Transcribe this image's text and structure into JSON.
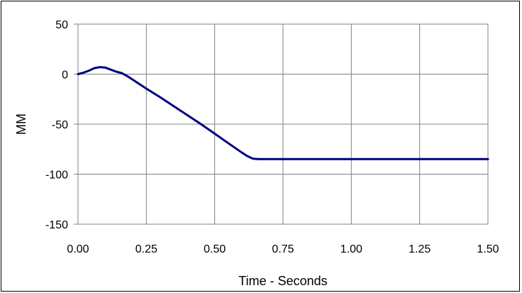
{
  "chart_data": {
    "type": "line",
    "title": "",
    "xlabel": "Time - Seconds",
    "ylabel": "MM",
    "xlim": [
      0.0,
      1.5
    ],
    "ylim": [
      -150,
      50
    ],
    "x_ticks": [
      "0.00",
      "0.25",
      "0.50",
      "0.75",
      "1.00",
      "1.25",
      "1.50"
    ],
    "y_ticks": [
      "50",
      "0",
      "-50",
      "-100",
      "-150"
    ],
    "x_tick_values": [
      0.0,
      0.25,
      0.5,
      0.75,
      1.0,
      1.25,
      1.5
    ],
    "y_tick_values": [
      50,
      0,
      -50,
      -100,
      -150
    ],
    "grid": true,
    "legend": "none",
    "line_color": "#000080",
    "series": [
      {
        "x": [
          0.0,
          0.02,
          0.04,
          0.06,
          0.08,
          0.1,
          0.12,
          0.14,
          0.16,
          0.18,
          0.2,
          0.25,
          0.3,
          0.35,
          0.4,
          0.45,
          0.5,
          0.55,
          0.6,
          0.62,
          0.64,
          0.66,
          0.7,
          0.8,
          0.9,
          1.0,
          1.1,
          1.2,
          1.3,
          1.4,
          1.5
        ],
        "y": [
          0,
          1.5,
          3.5,
          6,
          7,
          6.5,
          4.5,
          2.5,
          1,
          -2,
          -5.5,
          -14.5,
          -23,
          -32,
          -41,
          -50,
          -59.5,
          -69,
          -78.5,
          -82,
          -84.5,
          -85,
          -85,
          -85,
          -85,
          -85,
          -85,
          -85,
          -85,
          -85,
          -85
        ]
      }
    ]
  }
}
